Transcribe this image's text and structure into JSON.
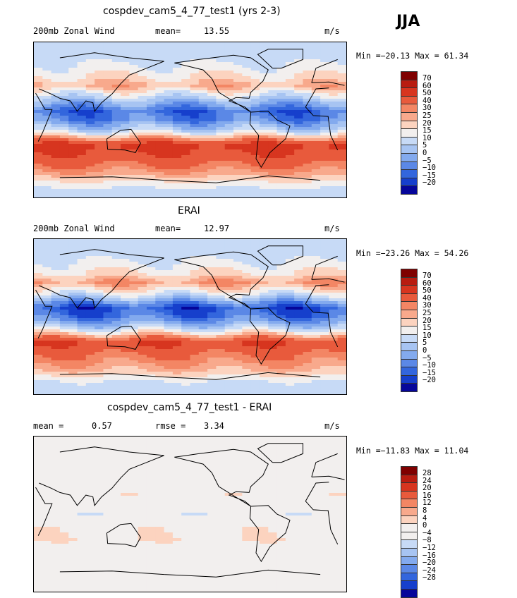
{
  "season": "JJA",
  "panels": [
    {
      "title": "cospdev_cam5_4_77_test1 (yrs 2-3)",
      "left_label": "200mb Zonal Wind",
      "stat_label": "mean=",
      "stat_value": "13.55",
      "unit": "m/s",
      "min_label": "Min =",
      "min_value": "−20.13",
      "max_label": "Max =",
      "max_value": "61.34",
      "levels": [
        "70",
        "60",
        "50",
        "40",
        "30",
        "25",
        "20",
        "15",
        "10",
        "5",
        "0",
        "−5",
        "−10",
        "−15",
        "−20"
      ],
      "colors": [
        "#7f0000",
        "#b81c10",
        "#d7351f",
        "#e85a3c",
        "#f38664",
        "#f8a98c",
        "#fcd3bf",
        "#f2efee",
        "#c7daf6",
        "#a7c4f2",
        "#83aaee",
        "#5b88e6",
        "#3366dd",
        "#163fcc",
        "#06069a"
      ]
    },
    {
      "title": "ERAI",
      "left_label": "200mb Zonal Wind",
      "stat_label": "mean=",
      "stat_value": "12.97",
      "unit": "m/s",
      "min_label": "Min =",
      "min_value": "−23.26",
      "max_label": "Max =",
      "max_value": "54.26",
      "levels": [
        "70",
        "60",
        "50",
        "40",
        "30",
        "25",
        "20",
        "15",
        "10",
        "5",
        "0",
        "−5",
        "−10",
        "−15",
        "−20"
      ],
      "colors": [
        "#7f0000",
        "#b81c10",
        "#d7351f",
        "#e85a3c",
        "#f38664",
        "#f8a98c",
        "#fcd3bf",
        "#f2efee",
        "#c7daf6",
        "#a7c4f2",
        "#83aaee",
        "#5b88e6",
        "#3366dd",
        "#163fcc",
        "#06069a"
      ]
    },
    {
      "title": "cospdev_cam5_4_77_test1 - ERAI",
      "left_label": "mean =",
      "left_value": "0.57",
      "stat_label": "rmse =",
      "stat_value": "3.34",
      "unit": "m/s",
      "min_label": "Min =",
      "min_value": "−11.83",
      "max_label": "Max =",
      "max_value": "11.04",
      "levels": [
        "28",
        "24",
        "20",
        "16",
        "12",
        "8",
        "4",
        "0",
        "−4",
        "−8",
        "−12",
        "−16",
        "−20",
        "−24",
        "−28"
      ],
      "colors": [
        "#7f0000",
        "#b81c10",
        "#d7351f",
        "#e85a3c",
        "#f38664",
        "#f8a98c",
        "#fcd3bf",
        "#f2efee",
        "#f2efee",
        "#c7daf6",
        "#a7c4f2",
        "#83aaee",
        "#5b88e6",
        "#3366dd",
        "#163fcc",
        "#06069a"
      ]
    }
  ],
  "chart_data": [
    {
      "type": "heatmap",
      "title": "cospdev_cam5_4_77_test1 (yrs 2-3)",
      "subtitle": "200mb Zonal Wind",
      "mean": 13.55,
      "units": "m/s",
      "min": -20.13,
      "max": 61.34,
      "contour_levels": [
        -20,
        -15,
        -10,
        -5,
        0,
        5,
        10,
        15,
        20,
        25,
        30,
        40,
        50,
        60,
        70
      ],
      "bands": [
        {
          "lat": 90,
          "value": 5
        },
        {
          "lat": 70,
          "value": 8
        },
        {
          "lat": 50,
          "value": 15
        },
        {
          "lat": 40,
          "value": 22
        },
        {
          "lat": 25,
          "value": 5
        },
        {
          "lat": 10,
          "value": -12
        },
        {
          "lat": 0,
          "value": -8
        },
        {
          "lat": -15,
          "value": 10
        },
        {
          "lat": -30,
          "value": 45
        },
        {
          "lat": -45,
          "value": 35
        },
        {
          "lat": -60,
          "value": 25
        },
        {
          "lat": -75,
          "value": 12
        },
        {
          "lat": -90,
          "value": 5
        }
      ]
    },
    {
      "type": "heatmap",
      "title": "ERAI",
      "subtitle": "200mb Zonal Wind",
      "mean": 12.97,
      "units": "m/s",
      "min": -23.26,
      "max": 54.26,
      "contour_levels": [
        -20,
        -15,
        -10,
        -5,
        0,
        5,
        10,
        15,
        20,
        25,
        30,
        40,
        50,
        60,
        70
      ],
      "bands": [
        {
          "lat": 90,
          "value": 5
        },
        {
          "lat": 70,
          "value": 8
        },
        {
          "lat": 50,
          "value": 15
        },
        {
          "lat": 40,
          "value": 25
        },
        {
          "lat": 25,
          "value": 8
        },
        {
          "lat": 10,
          "value": -15
        },
        {
          "lat": 0,
          "value": -10
        },
        {
          "lat": -15,
          "value": 8
        },
        {
          "lat": -30,
          "value": 40
        },
        {
          "lat": -45,
          "value": 30
        },
        {
          "lat": -60,
          "value": 22
        },
        {
          "lat": -75,
          "value": 10
        },
        {
          "lat": -90,
          "value": 5
        }
      ]
    },
    {
      "type": "heatmap",
      "title": "cospdev_cam5_4_77_test1 - ERAI",
      "mean": 0.57,
      "rmse": 3.34,
      "units": "m/s",
      "min": -11.83,
      "max": 11.04,
      "contour_levels": [
        -28,
        -24,
        -20,
        -16,
        -12,
        -8,
        -4,
        0,
        4,
        8,
        12,
        16,
        20,
        24,
        28
      ],
      "bands": [
        {
          "lat": 90,
          "value": 1
        },
        {
          "lat": 70,
          "value": -1
        },
        {
          "lat": 50,
          "value": 2
        },
        {
          "lat": 40,
          "value": -2
        },
        {
          "lat": 25,
          "value": 2
        },
        {
          "lat": 10,
          "value": 1
        },
        {
          "lat": 0,
          "value": -2
        },
        {
          "lat": -15,
          "value": 2
        },
        {
          "lat": -30,
          "value": 3
        },
        {
          "lat": -45,
          "value": -2
        },
        {
          "lat": -60,
          "value": 2
        },
        {
          "lat": -75,
          "value": 1
        },
        {
          "lat": -90,
          "value": 0
        }
      ]
    }
  ]
}
